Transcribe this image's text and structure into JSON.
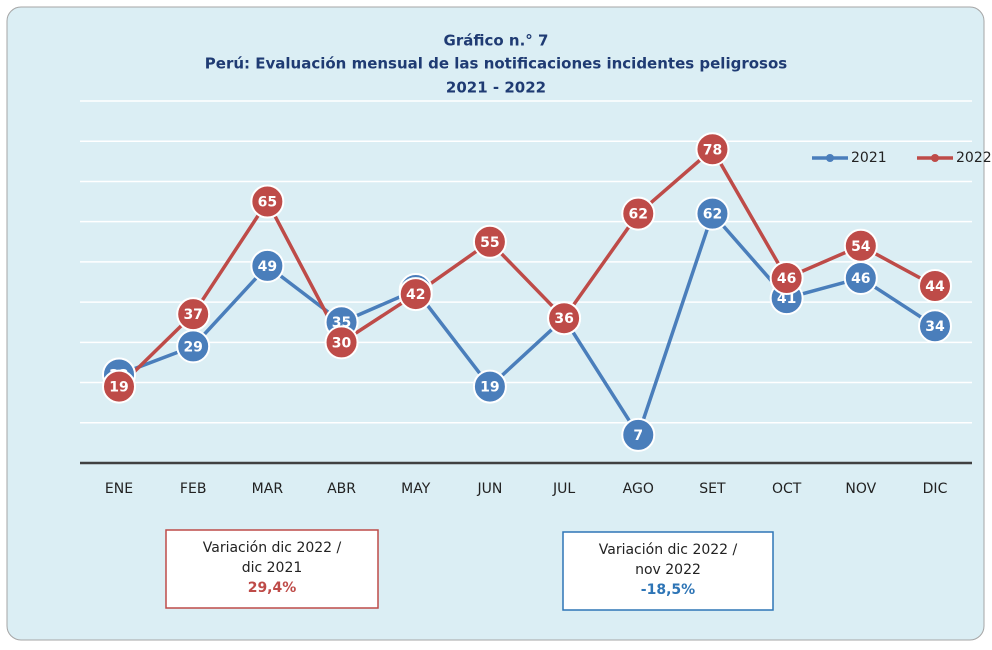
{
  "chart_data": {
    "type": "line",
    "title": "Gráfico n.° 7",
    "subtitle": [
      "Perú: Evaluación mensual de las notificaciones incidentes peligrosos",
      "2021 - 2022"
    ],
    "categories": [
      "ENE",
      "FEB",
      "MAR",
      "ABR",
      "MAY",
      "JUN",
      "JUL",
      "AGO",
      "SET",
      "OCT",
      "NOV",
      "DIC"
    ],
    "series": [
      {
        "name": "2021",
        "color": "#4a7ebb",
        "values": [
          22,
          29,
          49,
          35,
          43,
          19,
          36,
          7,
          62,
          41,
          46,
          34
        ]
      },
      {
        "name": "2022",
        "color": "#be4b48",
        "values": [
          19,
          37,
          65,
          30,
          42,
          55,
          36,
          62,
          78,
          46,
          54,
          44
        ]
      }
    ],
    "ylim": [
      0,
      90
    ],
    "yticks": [
      0,
      10,
      20,
      30,
      40,
      50,
      60,
      70,
      80,
      90
    ],
    "grid": true,
    "legend": "top-right",
    "annotations": [
      {
        "lines": [
          "Variación dic 2022 /",
          "dic  2021"
        ],
        "value": "29,4%",
        "color": "#be4b48"
      },
      {
        "lines": [
          "Variación dic 2022 /",
          "nov 2022"
        ],
        "value": "-18,5%",
        "color": "#2e75b6"
      }
    ]
  }
}
